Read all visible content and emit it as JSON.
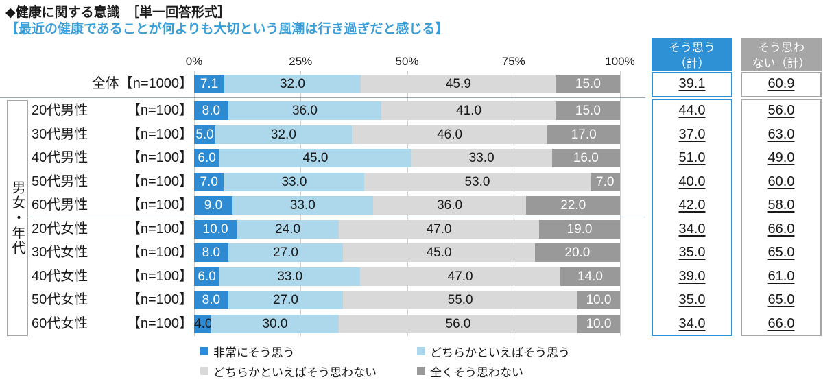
{
  "title": "◆健康に関する意識　［単一回答形式］",
  "subtitle": "【最近の健康であることが何よりも大切という風潮は行き過ぎだと感じる】",
  "colors": {
    "subtitle_blue": "#3a9fd9",
    "accent_blue": "#2e91d5",
    "accent_gray": "#a6a6a6",
    "grid": "#cfcfcf",
    "separator": "#95a9b5",
    "segment": [
      "#2e8bd2",
      "#add8ec",
      "#d9d9d9",
      "#999999"
    ],
    "segment_label": [
      "#ffffff",
      "#1a1a1a",
      "#1a1a1a",
      "#ffffff"
    ]
  },
  "chart_data": {
    "type": "bar",
    "variant": "stacked-horizontal",
    "title": "健康に関する意識（単一回答形式）",
    "question": "最近の健康であることが何よりも大切という風潮は行き過ぎだと感じる",
    "unit": "%",
    "xlim": [
      0,
      100
    ],
    "x_ticks": [
      "0%",
      "25%",
      "50%",
      "75%",
      "100%"
    ],
    "grid": true,
    "legend_position": "bottom",
    "group_label": "男女・年代",
    "series_names": [
      "非常にそう思う",
      "どちらかといえばそう思う",
      "どちらかといえばそう思わない",
      "全くそう思わない"
    ],
    "summary_columns": [
      {
        "key": "agree",
        "header_lines": [
          "そう思う",
          "（計）"
        ]
      },
      {
        "key": "disagree",
        "header_lines": [
          "そう思わ",
          "ない（計）"
        ]
      }
    ],
    "rows": [
      {
        "label": "全体",
        "n": "【n=1000】",
        "values": [
          7.1,
          32.0,
          45.9,
          15.0
        ],
        "agree": 39.1,
        "disagree": 60.9,
        "overall": true
      },
      {
        "label": "20代男性",
        "n": "【n=100】",
        "values": [
          8.0,
          36.0,
          41.0,
          15.0
        ],
        "agree": 44.0,
        "disagree": 56.0
      },
      {
        "label": "30代男性",
        "n": "【n=100】",
        "values": [
          5.0,
          32.0,
          46.0,
          17.0
        ],
        "agree": 37.0,
        "disagree": 63.0
      },
      {
        "label": "40代男性",
        "n": "【n=100】",
        "values": [
          6.0,
          45.0,
          33.0,
          16.0
        ],
        "agree": 51.0,
        "disagree": 49.0
      },
      {
        "label": "50代男性",
        "n": "【n=100】",
        "values": [
          7.0,
          33.0,
          53.0,
          7.0
        ],
        "agree": 40.0,
        "disagree": 60.0
      },
      {
        "label": "60代男性",
        "n": "【n=100】",
        "values": [
          9.0,
          33.0,
          36.0,
          22.0
        ],
        "agree": 42.0,
        "disagree": 58.0
      },
      {
        "label": "20代女性",
        "n": "【n=100】",
        "values": [
          10.0,
          24.0,
          47.0,
          19.0
        ],
        "agree": 34.0,
        "disagree": 66.0
      },
      {
        "label": "30代女性",
        "n": "【n=100】",
        "values": [
          8.0,
          27.0,
          45.0,
          20.0
        ],
        "agree": 35.0,
        "disagree": 65.0
      },
      {
        "label": "40代女性",
        "n": "【n=100】",
        "values": [
          6.0,
          33.0,
          47.0,
          14.0
        ],
        "agree": 39.0,
        "disagree": 61.0
      },
      {
        "label": "50代女性",
        "n": "【n=100】",
        "values": [
          8.0,
          27.0,
          55.0,
          10.0
        ],
        "agree": 35.0,
        "disagree": 65.0
      },
      {
        "label": "60代女性",
        "n": "【n=100】",
        "values": [
          4.0,
          30.0,
          56.0,
          10.0
        ],
        "agree": 34.0,
        "disagree": 66.0,
        "first_label_dark": true
      }
    ]
  }
}
